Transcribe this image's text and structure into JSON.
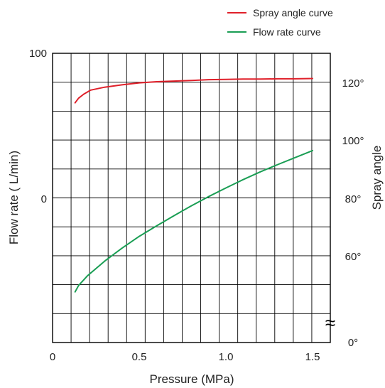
{
  "chart_data": {
    "type": "line",
    "title": "",
    "xlabel": "Pressure (MPa)",
    "ylabel": "Flow rate ( L/min)",
    "y2label": "Spray angle",
    "x_ticks": [
      {
        "value": 0,
        "label": "0"
      },
      {
        "value": 0.5,
        "label": "0.5"
      },
      {
        "value": 1.0,
        "label": "1.0"
      },
      {
        "value": 1.5,
        "label": "1.5"
      }
    ],
    "y_ticks": [
      {
        "value": 100,
        "label": "100"
      },
      {
        "value": 0,
        "label": "0"
      }
    ],
    "y2_ticks": [
      {
        "value": 120,
        "label": "120°"
      },
      {
        "value": 100,
        "label": "100°"
      },
      {
        "value": 80,
        "label": "80°"
      },
      {
        "value": 60,
        "label": "60°"
      },
      {
        "value": 0,
        "label": "0°"
      }
    ],
    "xlim": [
      0,
      1.65
    ],
    "y2lim": [
      0,
      140
    ],
    "y2_break": true,
    "grid": true,
    "legend_position": "top-right",
    "series": [
      {
        "name": "Spray angle curve",
        "color": "#e0202a",
        "axis": "right",
        "x": [
          0.13,
          0.15,
          0.18,
          0.22,
          0.3,
          0.4,
          0.5,
          0.6,
          0.7,
          0.8,
          0.9,
          1.0,
          1.1,
          1.2,
          1.3,
          1.4,
          1.5
        ],
        "y": [
          113.2,
          114.8,
          116.2,
          117.6,
          118.6,
          119.4,
          120.1,
          120.5,
          120.7,
          120.9,
          121.2,
          121.3,
          121.4,
          121.4,
          121.5,
          121.5,
          121.6
        ]
      },
      {
        "name": "Flow rate curve",
        "color": "#1a9e54",
        "axis": "right",
        "x": [
          0.13,
          0.15,
          0.2,
          0.3,
          0.4,
          0.5,
          0.6,
          0.7,
          0.8,
          0.9,
          1.0,
          1.1,
          1.2,
          1.3,
          1.4,
          1.5
        ],
        "y": [
          47.9,
          50.1,
          53.4,
          58.5,
          63.0,
          67.1,
          70.7,
          74.2,
          77.6,
          80.8,
          83.8,
          86.7,
          89.4,
          91.9,
          94.3,
          96.7
        ]
      }
    ]
  }
}
